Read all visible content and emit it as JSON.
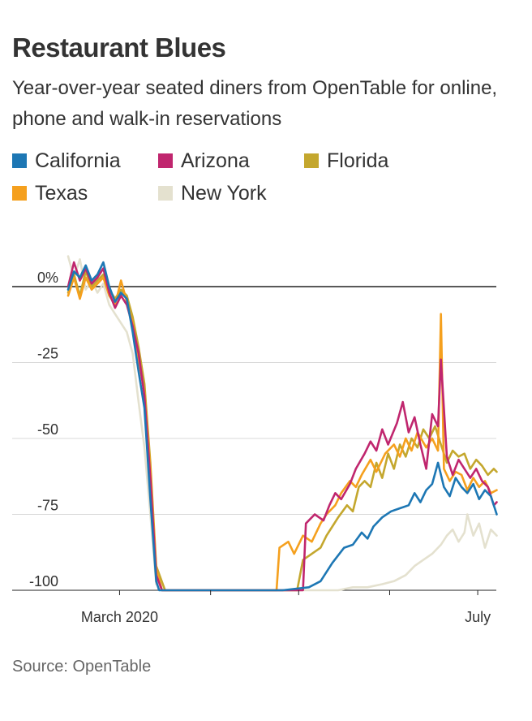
{
  "title": "Restaurant Blues",
  "subtitle": "Year-over-year seated diners from OpenTable for online, phone and walk-in reservations",
  "source": "Source: OpenTable",
  "chart_data": {
    "type": "line",
    "title": "Restaurant Blues",
    "subtitle": "Year-over-year seated diners from OpenTable for online, phone and walk-in reservations",
    "xlabel": "",
    "ylabel": "",
    "x_tick_labels": [
      "March 2020",
      "July"
    ],
    "y_ticks": [
      {
        "value": 0,
        "label": "0%"
      },
      {
        "value": -25,
        "label": "-25"
      },
      {
        "value": -50,
        "label": "-50"
      },
      {
        "value": -75,
        "label": "-75"
      },
      {
        "value": -100,
        "label": "-100"
      }
    ],
    "ylim": [
      -100,
      10
    ],
    "xlim": [
      "2020-02-18",
      "2020-07-14"
    ],
    "grid": "horizontal",
    "legend": "top",
    "series": [
      {
        "name": "California",
        "color": "#1d77b4",
        "points": [
          [
            "2020-02-18",
            -1
          ],
          [
            "2020-02-20",
            5
          ],
          [
            "2020-02-22",
            3
          ],
          [
            "2020-02-24",
            7
          ],
          [
            "2020-02-26",
            2
          ],
          [
            "2020-02-28",
            4
          ],
          [
            "2020-03-01",
            8
          ],
          [
            "2020-03-03",
            0
          ],
          [
            "2020-03-05",
            -5
          ],
          [
            "2020-03-07",
            -2
          ],
          [
            "2020-03-09",
            -4
          ],
          [
            "2020-03-11",
            -15
          ],
          [
            "2020-03-13",
            -28
          ],
          [
            "2020-03-15",
            -40
          ],
          [
            "2020-03-17",
            -70
          ],
          [
            "2020-03-19",
            -97
          ],
          [
            "2020-03-20",
            -100
          ],
          [
            "2020-04-15",
            -100
          ],
          [
            "2020-05-01",
            -100
          ],
          [
            "2020-05-10",
            -99
          ],
          [
            "2020-05-14",
            -97
          ],
          [
            "2020-05-18",
            -91
          ],
          [
            "2020-05-22",
            -86
          ],
          [
            "2020-05-25",
            -85
          ],
          [
            "2020-05-28",
            -81
          ],
          [
            "2020-05-30",
            -83
          ],
          [
            "2020-06-01",
            -79
          ],
          [
            "2020-06-04",
            -76
          ],
          [
            "2020-06-07",
            -74
          ],
          [
            "2020-06-10",
            -73
          ],
          [
            "2020-06-13",
            -72
          ],
          [
            "2020-06-15",
            -68
          ],
          [
            "2020-06-17",
            -71
          ],
          [
            "2020-06-19",
            -67
          ],
          [
            "2020-06-21",
            -65
          ],
          [
            "2020-06-23",
            -58
          ],
          [
            "2020-06-25",
            -66
          ],
          [
            "2020-06-27",
            -69
          ],
          [
            "2020-06-29",
            -63
          ],
          [
            "2020-07-01",
            -66
          ],
          [
            "2020-07-03",
            -68
          ],
          [
            "2020-07-05",
            -65
          ],
          [
            "2020-07-07",
            -70
          ],
          [
            "2020-07-09",
            -67
          ],
          [
            "2020-07-11",
            -69
          ],
          [
            "2020-07-13",
            -75
          ]
        ]
      },
      {
        "name": "Arizona",
        "color": "#c0266e",
        "points": [
          [
            "2020-02-18",
            0
          ],
          [
            "2020-02-20",
            8
          ],
          [
            "2020-02-22",
            2
          ],
          [
            "2020-02-24",
            6
          ],
          [
            "2020-02-26",
            1
          ],
          [
            "2020-02-28",
            3
          ],
          [
            "2020-03-01",
            6
          ],
          [
            "2020-03-03",
            -2
          ],
          [
            "2020-03-05",
            -7
          ],
          [
            "2020-03-07",
            -3
          ],
          [
            "2020-03-09",
            -6
          ],
          [
            "2020-03-11",
            -13
          ],
          [
            "2020-03-13",
            -22
          ],
          [
            "2020-03-15",
            -36
          ],
          [
            "2020-03-17",
            -63
          ],
          [
            "2020-03-19",
            -95
          ],
          [
            "2020-03-21",
            -100
          ],
          [
            "2020-05-08",
            -100
          ],
          [
            "2020-05-09",
            -78
          ],
          [
            "2020-05-12",
            -75
          ],
          [
            "2020-05-15",
            -77
          ],
          [
            "2020-05-17",
            -72
          ],
          [
            "2020-05-19",
            -68
          ],
          [
            "2020-05-21",
            -70
          ],
          [
            "2020-05-24",
            -65
          ],
          [
            "2020-05-26",
            -60
          ],
          [
            "2020-05-29",
            -55
          ],
          [
            "2020-05-31",
            -51
          ],
          [
            "2020-06-02",
            -54
          ],
          [
            "2020-06-04",
            -47
          ],
          [
            "2020-06-06",
            -52
          ],
          [
            "2020-06-09",
            -45
          ],
          [
            "2020-06-11",
            -38
          ],
          [
            "2020-06-13",
            -48
          ],
          [
            "2020-06-15",
            -43
          ],
          [
            "2020-06-17",
            -52
          ],
          [
            "2020-06-19",
            -60
          ],
          [
            "2020-06-21",
            -42
          ],
          [
            "2020-06-23",
            -46
          ],
          [
            "2020-06-24",
            -24
          ],
          [
            "2020-06-26",
            -56
          ],
          [
            "2020-06-28",
            -62
          ],
          [
            "2020-06-30",
            -57
          ],
          [
            "2020-07-02",
            -60
          ],
          [
            "2020-07-04",
            -63
          ],
          [
            "2020-07-06",
            -60
          ],
          [
            "2020-07-08",
            -64
          ],
          [
            "2020-07-10",
            -66
          ],
          [
            "2020-07-12",
            -72
          ],
          [
            "2020-07-13",
            -71
          ]
        ]
      },
      {
        "name": "Florida",
        "color": "#c4a72e",
        "points": [
          [
            "2020-02-18",
            -2
          ],
          [
            "2020-02-20",
            4
          ],
          [
            "2020-02-22",
            -3
          ],
          [
            "2020-02-24",
            5
          ],
          [
            "2020-02-26",
            0
          ],
          [
            "2020-02-28",
            2
          ],
          [
            "2020-03-01",
            4
          ],
          [
            "2020-03-03",
            -1
          ],
          [
            "2020-03-05",
            -4
          ],
          [
            "2020-03-07",
            -1
          ],
          [
            "2020-03-09",
            -3
          ],
          [
            "2020-03-11",
            -10
          ],
          [
            "2020-03-13",
            -20
          ],
          [
            "2020-03-15",
            -32
          ],
          [
            "2020-03-17",
            -58
          ],
          [
            "2020-03-19",
            -92
          ],
          [
            "2020-03-22",
            -100
          ],
          [
            "2020-05-06",
            -100
          ],
          [
            "2020-05-08",
            -90
          ],
          [
            "2020-05-11",
            -88
          ],
          [
            "2020-05-14",
            -86
          ],
          [
            "2020-05-16",
            -82
          ],
          [
            "2020-05-18",
            -79
          ],
          [
            "2020-05-20",
            -76
          ],
          [
            "2020-05-23",
            -72
          ],
          [
            "2020-05-25",
            -74
          ],
          [
            "2020-05-27",
            -66
          ],
          [
            "2020-05-29",
            -64
          ],
          [
            "2020-05-31",
            -66
          ],
          [
            "2020-06-02",
            -58
          ],
          [
            "2020-06-04",
            -63
          ],
          [
            "2020-06-06",
            -55
          ],
          [
            "2020-06-08",
            -60
          ],
          [
            "2020-06-10",
            -52
          ],
          [
            "2020-06-12",
            -56
          ],
          [
            "2020-06-14",
            -50
          ],
          [
            "2020-06-16",
            -53
          ],
          [
            "2020-06-18",
            -47
          ],
          [
            "2020-06-20",
            -50
          ],
          [
            "2020-06-22",
            -46
          ],
          [
            "2020-06-24",
            -52
          ],
          [
            "2020-06-26",
            -58
          ],
          [
            "2020-06-28",
            -54
          ],
          [
            "2020-06-30",
            -56
          ],
          [
            "2020-07-02",
            -55
          ],
          [
            "2020-07-04",
            -60
          ],
          [
            "2020-07-06",
            -57
          ],
          [
            "2020-07-08",
            -59
          ],
          [
            "2020-07-10",
            -62
          ],
          [
            "2020-07-12",
            -60
          ],
          [
            "2020-07-13",
            -61
          ]
        ]
      },
      {
        "name": "Texas",
        "color": "#f5a01e",
        "points": [
          [
            "2020-02-18",
            -3
          ],
          [
            "2020-02-20",
            3
          ],
          [
            "2020-02-22",
            -4
          ],
          [
            "2020-02-24",
            3
          ],
          [
            "2020-02-26",
            -1
          ],
          [
            "2020-02-28",
            1
          ],
          [
            "2020-03-01",
            3
          ],
          [
            "2020-03-03",
            -3
          ],
          [
            "2020-03-05",
            -6
          ],
          [
            "2020-03-07",
            2
          ],
          [
            "2020-03-09",
            -5
          ],
          [
            "2020-03-11",
            -12
          ],
          [
            "2020-03-13",
            -24
          ],
          [
            "2020-03-15",
            -35
          ],
          [
            "2020-03-17",
            -60
          ],
          [
            "2020-03-19",
            -93
          ],
          [
            "2020-03-21",
            -100
          ],
          [
            "2020-04-29",
            -100
          ],
          [
            "2020-04-30",
            -86
          ],
          [
            "2020-05-03",
            -84
          ],
          [
            "2020-05-05",
            -88
          ],
          [
            "2020-05-08",
            -82
          ],
          [
            "2020-05-11",
            -84
          ],
          [
            "2020-05-14",
            -78
          ],
          [
            "2020-05-16",
            -75
          ],
          [
            "2020-05-19",
            -72
          ],
          [
            "2020-05-21",
            -68
          ],
          [
            "2020-05-24",
            -64
          ],
          [
            "2020-05-26",
            -66
          ],
          [
            "2020-05-28",
            -62
          ],
          [
            "2020-05-31",
            -57
          ],
          [
            "2020-06-02",
            -61
          ],
          [
            "2020-06-05",
            -55
          ],
          [
            "2020-06-08",
            -52
          ],
          [
            "2020-06-10",
            -56
          ],
          [
            "2020-06-12",
            -50
          ],
          [
            "2020-06-14",
            -54
          ],
          [
            "2020-06-16",
            -48
          ],
          [
            "2020-06-19",
            -53
          ],
          [
            "2020-06-21",
            -50
          ],
          [
            "2020-06-23",
            -54
          ],
          [
            "2020-06-24",
            -9
          ],
          [
            "2020-06-25",
            -60
          ],
          [
            "2020-06-27",
            -64
          ],
          [
            "2020-06-29",
            -61
          ],
          [
            "2020-07-01",
            -62
          ],
          [
            "2020-07-03",
            -67
          ],
          [
            "2020-07-05",
            -63
          ],
          [
            "2020-07-07",
            -66
          ],
          [
            "2020-07-09",
            -64
          ],
          [
            "2020-07-11",
            -68
          ],
          [
            "2020-07-13",
            -67
          ]
        ]
      },
      {
        "name": "New York",
        "color": "#e4e1cf",
        "points": [
          [
            "2020-02-18",
            10
          ],
          [
            "2020-02-20",
            3
          ],
          [
            "2020-02-22",
            9
          ],
          [
            "2020-02-24",
            -1
          ],
          [
            "2020-02-26",
            2
          ],
          [
            "2020-02-28",
            -2
          ],
          [
            "2020-03-01",
            1
          ],
          [
            "2020-03-03",
            -6
          ],
          [
            "2020-03-05",
            -9
          ],
          [
            "2020-03-07",
            -12
          ],
          [
            "2020-03-09",
            -15
          ],
          [
            "2020-03-11",
            -22
          ],
          [
            "2020-03-13",
            -38
          ],
          [
            "2020-03-15",
            -53
          ],
          [
            "2020-03-17",
            -75
          ],
          [
            "2020-03-19",
            -98
          ],
          [
            "2020-03-21",
            -100
          ],
          [
            "2020-05-20",
            -100
          ],
          [
            "2020-05-25",
            -99
          ],
          [
            "2020-05-30",
            -99
          ],
          [
            "2020-06-04",
            -98
          ],
          [
            "2020-06-08",
            -97
          ],
          [
            "2020-06-12",
            -95
          ],
          [
            "2020-06-15",
            -92
          ],
          [
            "2020-06-18",
            -90
          ],
          [
            "2020-06-21",
            -88
          ],
          [
            "2020-06-24",
            -85
          ],
          [
            "2020-06-26",
            -82
          ],
          [
            "2020-06-28",
            -80
          ],
          [
            "2020-06-30",
            -84
          ],
          [
            "2020-07-02",
            -81
          ],
          [
            "2020-07-03",
            -75
          ],
          [
            "2020-07-05",
            -82
          ],
          [
            "2020-07-07",
            -78
          ],
          [
            "2020-07-09",
            -86
          ],
          [
            "2020-07-11",
            -80
          ],
          [
            "2020-07-13",
            -82
          ]
        ]
      }
    ]
  }
}
